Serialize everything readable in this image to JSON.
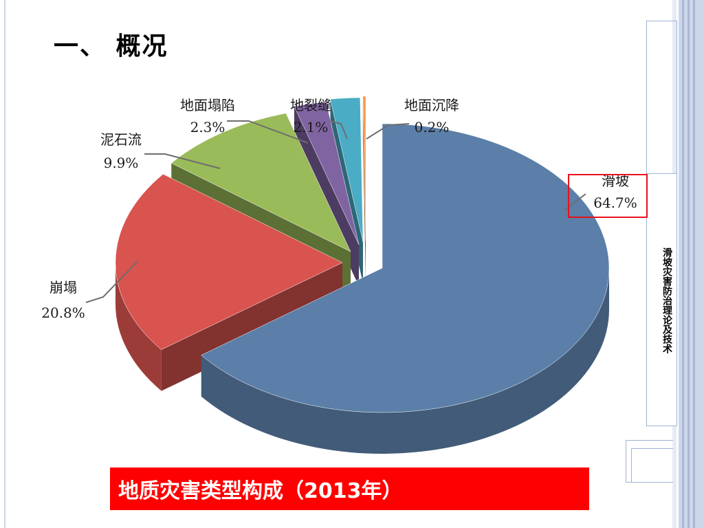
{
  "slide": {
    "heading": "一、 概况",
    "side_label": "滑坡灾害防治理论及技术",
    "caption": "地质灾害类型构成（2013年）"
  },
  "chart_data": {
    "type": "pie",
    "title": "",
    "series": [
      {
        "name": "滑坡",
        "value": 64.7,
        "label": "64.7%",
        "color": "#5b7fa8"
      },
      {
        "name": "崩塌",
        "value": 20.8,
        "label": "20.8%",
        "color": "#d9534f"
      },
      {
        "name": "泥石流",
        "value": 9.9,
        "label": "9.9%",
        "color": "#9abb59"
      },
      {
        "name": "地面塌陷",
        "value": 2.3,
        "label": "2.3%",
        "color": "#8064a2"
      },
      {
        "name": "地裂缝",
        "value": 2.1,
        "label": "2.1%",
        "color": "#4bacc6"
      },
      {
        "name": "地面沉降",
        "value": 0.2,
        "label": "0.2%",
        "color": "#f79646"
      }
    ],
    "style": "3d-exploded",
    "highlighted": "滑坡"
  }
}
